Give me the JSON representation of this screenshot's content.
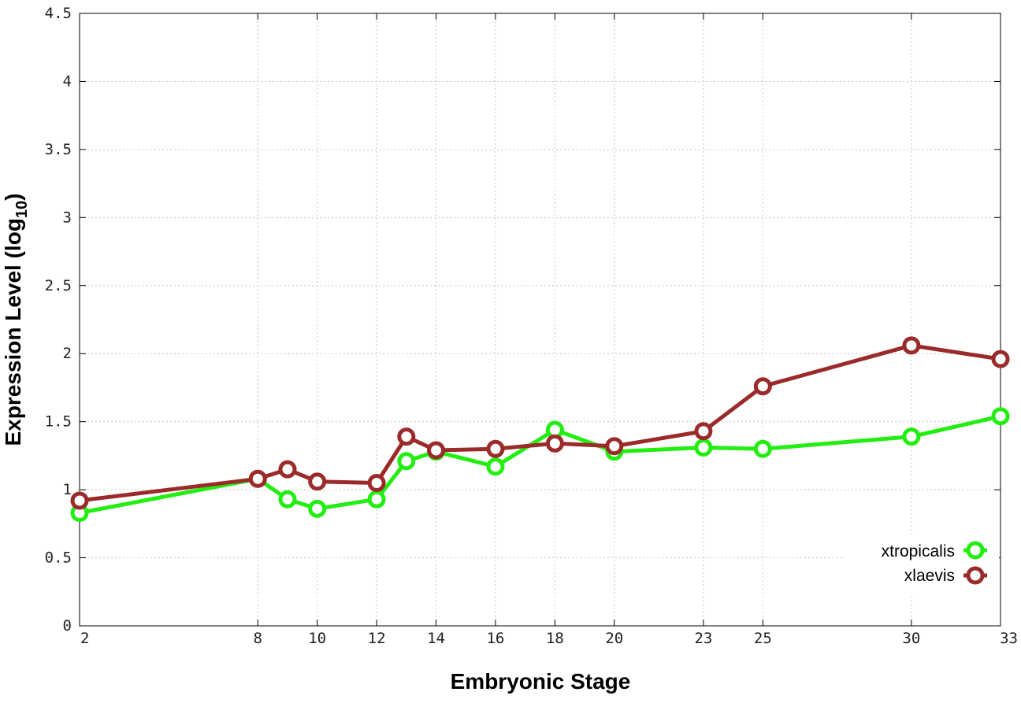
{
  "chart_data": {
    "type": "line",
    "title": "",
    "xlabel": "Embryonic Stage",
    "ylabel": "Expression Level (log",
    "ylabel_sub": "10",
    "ylabel_close": ")",
    "ylim": [
      0,
      4.5
    ],
    "yticks": [
      "0",
      "0.5",
      "1",
      "1.5",
      "2",
      "2.5",
      "3",
      "3.5",
      "4",
      "4.5"
    ],
    "x": [
      2,
      8,
      9,
      10,
      12,
      13,
      14,
      16,
      18,
      20,
      23,
      25,
      30,
      33
    ],
    "xtick_labels": [
      "2",
      "8",
      "10",
      "12",
      "14",
      "16",
      "18",
      "20",
      "23",
      "25",
      "30",
      "33"
    ],
    "grid": true,
    "legend_position": "bottom-right",
    "series": [
      {
        "name": "xtropicalis",
        "color": "#22ee11",
        "values": [
          0.83,
          1.08,
          0.93,
          0.86,
          0.93,
          1.21,
          1.28,
          1.17,
          1.44,
          1.28,
          1.31,
          1.3,
          1.39,
          1.54
        ]
      },
      {
        "name": "xlaevis",
        "color": "#9b2a2a",
        "values": [
          0.92,
          1.08,
          1.15,
          1.06,
          1.05,
          1.39,
          1.29,
          1.3,
          1.34,
          1.32,
          1.43,
          1.76,
          2.06,
          1.96
        ]
      }
    ]
  }
}
